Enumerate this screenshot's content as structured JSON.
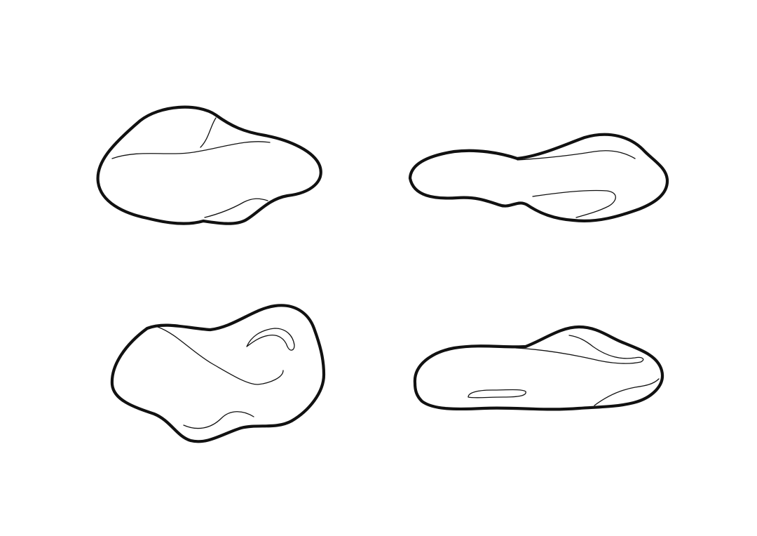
{
  "palette": {
    "background": "#ffffff",
    "stroke": "#111111"
  }
}
